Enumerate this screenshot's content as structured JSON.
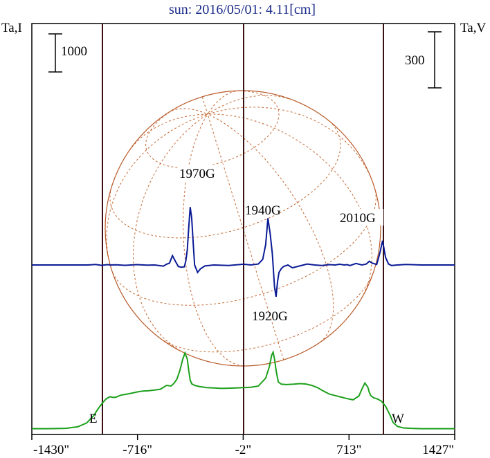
{
  "chart_data": {
    "type": "line",
    "title": "sun: 2016/05/01: 4.11[cm]",
    "y_left_label": "Ta,I",
    "y_right_label": "Ta,V",
    "x_tick_labels": [
      "-1430\"",
      "-716\"",
      "-2\"",
      "713\"",
      "1427\""
    ],
    "x_ticks": [
      -1430,
      -716,
      -2,
      713,
      1427
    ],
    "xlim": [
      -1430,
      1427
    ],
    "limb_markers": [
      {
        "label": "E",
        "x": -1000
      },
      {
        "label": "W",
        "x": 1000
      }
    ],
    "center_line_x": -2,
    "scale_bars": [
      {
        "label": "1000",
        "side": "left",
        "series": "Ta,I"
      },
      {
        "label": "300",
        "side": "right",
        "series": "Ta,V"
      }
    ],
    "solar_disk": {
      "radius_arcsec": 990,
      "grid": true
    },
    "annotations": [
      {
        "text": "1970G",
        "x": -560
      },
      {
        "text": "1940G",
        "x": 170
      },
      {
        "text": "2010G",
        "x": 920
      },
      {
        "text": "1920G",
        "x": 210
      }
    ],
    "series": [
      {
        "name": "Ta,I",
        "color": "#1ca01c",
        "x": [
          -1430,
          -1320,
          -1200,
          -1120,
          -1060,
          -1010,
          -990,
          -970,
          -950,
          -930,
          -915,
          -900,
          -880,
          -860,
          -840,
          -820,
          -800,
          -760,
          -720,
          -700,
          -680,
          -640,
          -600,
          -560,
          -520,
          -490,
          -470,
          -450,
          -430,
          -410,
          -395,
          -380,
          -370,
          -360,
          -350,
          -330,
          -300,
          -250,
          -200,
          -150,
          -100,
          -50,
          0,
          50,
          100,
          150,
          175,
          190,
          200,
          210,
          220,
          235,
          255,
          290,
          340,
          380,
          420,
          460,
          500,
          540,
          580,
          620,
          660,
          700,
          740,
          780,
          800,
          820,
          840,
          850,
          860,
          880,
          900,
          930,
          960,
          990,
          1010,
          1040,
          1080,
          1130,
          1200,
          1320,
          1427
        ],
        "values": [
          -30,
          -30,
          -20,
          20,
          120,
          320,
          450,
          560,
          660,
          745,
          785,
          810,
          790,
          800,
          835,
          860,
          870,
          900,
          935,
          948,
          958,
          968,
          985,
          1010,
          1110,
          1090,
          1160,
          1270,
          1500,
          1800,
          1960,
          1800,
          1500,
          1250,
          1150,
          1110,
          1080,
          1050,
          1040,
          1030,
          1035,
          1040,
          1050,
          1060,
          1090,
          1300,
          1600,
          1900,
          1980,
          1800,
          1500,
          1200,
          1140,
          1130,
          1140,
          1155,
          1145,
          1110,
          1050,
          960,
          880,
          840,
          800,
          760,
          730,
          830,
          1010,
          1170,
          1060,
          930,
          840,
          780,
          760,
          700,
          560,
          330,
          140,
          30,
          -10,
          -20,
          -30,
          -30,
          -30
        ]
      },
      {
        "name": "Ta,V",
        "color": "#0a1a94",
        "x": [
          -1430,
          -1050,
          -1000,
          -960,
          -920,
          -900,
          -860,
          -800,
          -720,
          -650,
          -600,
          -560,
          -540,
          -520,
          -500,
          -480,
          -460,
          -440,
          -420,
          -400,
          -390,
          -380,
          -370,
          -360,
          -350,
          -340,
          -330,
          -310,
          -290,
          -260,
          -200,
          -100,
          0,
          50,
          100,
          130,
          150,
          165,
          180,
          195,
          210,
          220,
          230,
          240,
          255,
          270,
          300,
          330,
          380,
          430,
          480,
          530,
          580,
          620,
          650,
          680,
          700,
          720,
          760,
          800,
          830,
          850,
          870,
          900,
          920,
          940,
          960,
          980,
          1000,
          1040,
          1100,
          1200,
          1427
        ],
        "values": [
          0,
          0,
          3,
          -2,
          2,
          0,
          1,
          -2,
          2,
          -1,
          0,
          -4,
          -6,
          4,
          10,
          50,
          20,
          -8,
          -12,
          -10,
          20,
          80,
          200,
          310,
          250,
          120,
          0,
          -40,
          -20,
          -5,
          0,
          -3,
          4,
          0,
          5,
          30,
          110,
          250,
          170,
          60,
          -120,
          -170,
          -90,
          -40,
          -20,
          -8,
          0,
          -15,
          -5,
          5,
          0,
          -3,
          2,
          0,
          4,
          0,
          2,
          -3,
          8,
          0,
          5,
          20,
          10,
          3,
          60,
          130,
          40,
          5,
          -3,
          0,
          3,
          0,
          0
        ]
      }
    ]
  }
}
